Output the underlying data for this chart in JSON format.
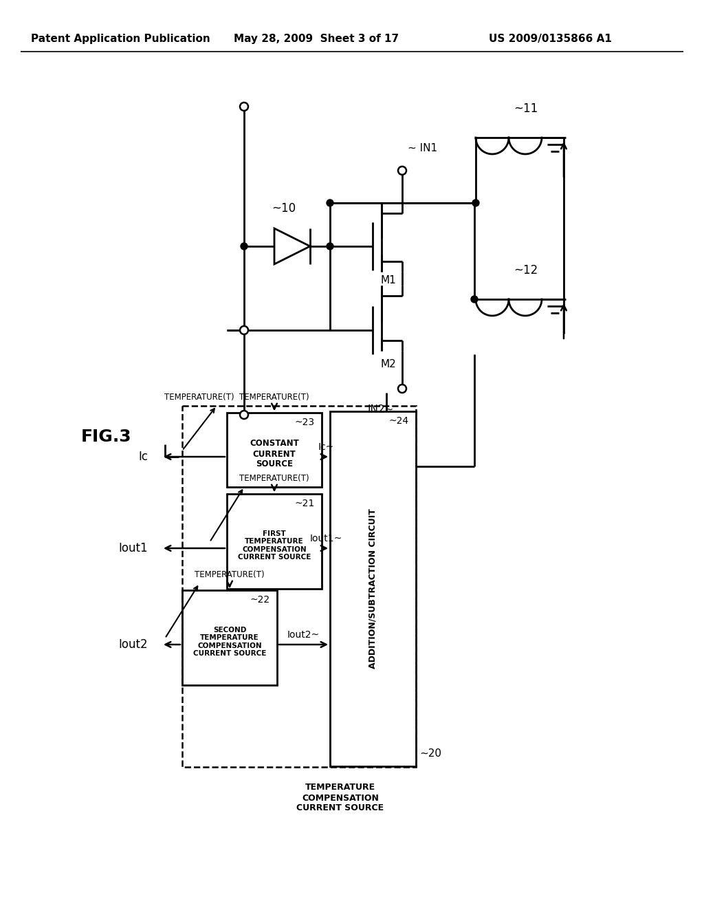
{
  "bg_color": "#ffffff",
  "lc": "#000000",
  "header_left": "Patent Application Publication",
  "header_center": "May 28, 2009  Sheet 3 of 17",
  "header_right": "US 2009/0135866 A1",
  "fig_label": "FIG.3",
  "label_10": "~10",
  "label_11": "~11",
  "label_12": "~12",
  "label_m1": "M1",
  "label_m2": "M2",
  "label_in1": "~ IN1",
  "label_in2": "IN2~",
  "label_20": "~20",
  "label_21": "~21",
  "label_22": "~22",
  "label_23": "~23",
  "label_24": "~24",
  "label_iout1_wire": "Iout1~",
  "label_iout2_wire": "Iout2~",
  "label_ic_wire": "Ic~",
  "label_iout1": "Iout1",
  "label_iout2": "Iout2",
  "label_ic": "Ic",
  "text_block20": "TEMPERATURE\nCOMPENSATION\nCURRENT SOURCE",
  "text_block21": "FIRST\nTEMPERATURE\nCOMPENSATION\nCURRENT SOURCE",
  "text_block22": "SECOND\nTEMPERATURE\nCOMPENSATION\nCURRENT SOURCE",
  "text_block23": "CONSTANT\nCURRENT\nSOURCE",
  "text_block24": "ADDITION/SUBTRACTION CIRCUIT",
  "temp_t": "TEMPERATURE(T)"
}
